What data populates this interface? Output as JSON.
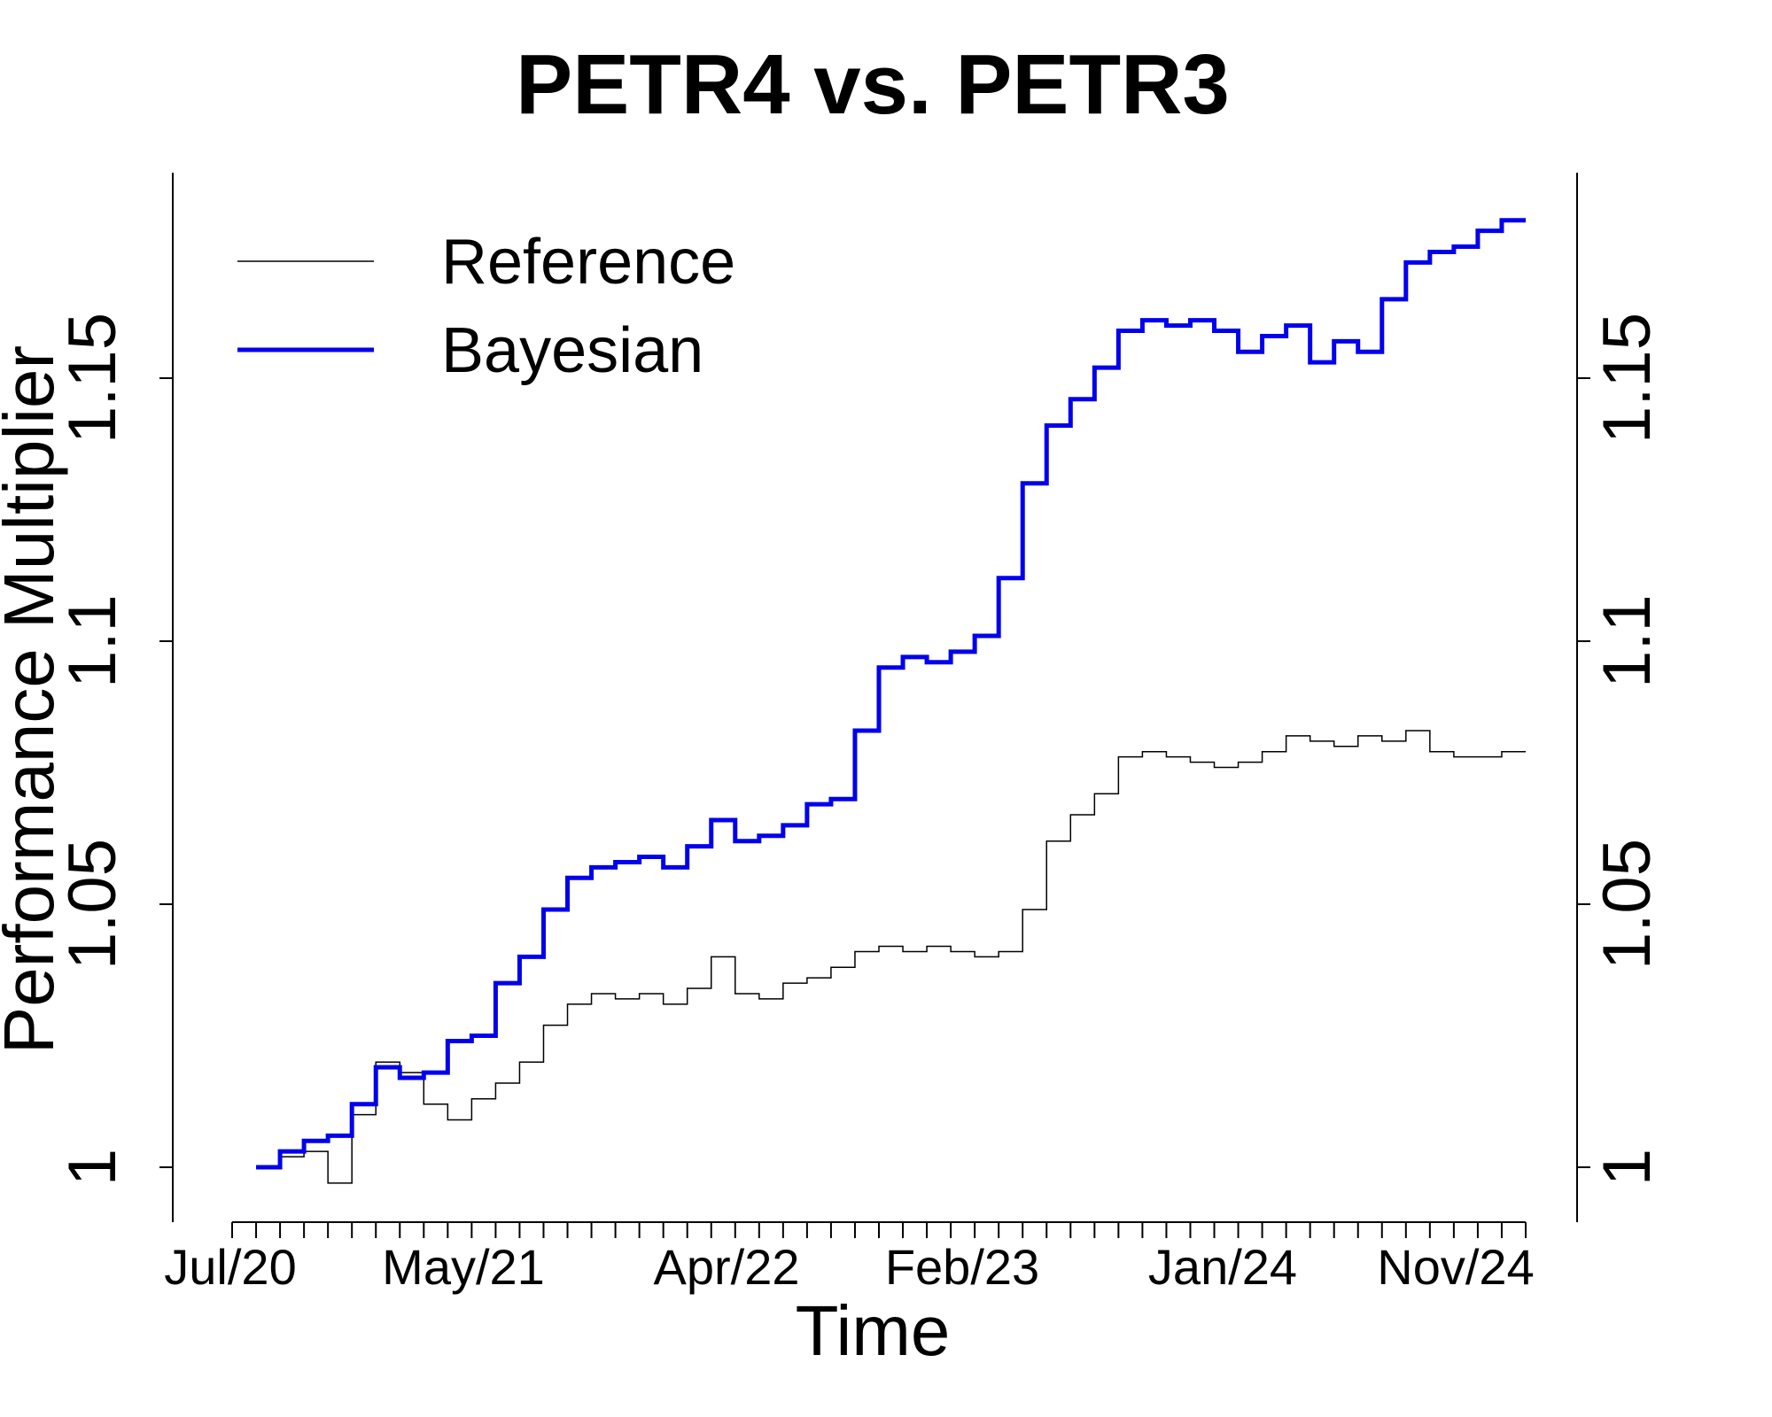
{
  "chart_data": {
    "type": "line",
    "title": "PETR4 vs. PETR3",
    "xlabel": "Time",
    "ylabel": "Performance Multiplier",
    "x_tick_labels": [
      "Jul/20",
      "May/21",
      "Apr/22",
      "Feb/23",
      "Jan/24",
      "Nov/24"
    ],
    "y_ticks": [
      1,
      1.05,
      1.1,
      1.15
    ],
    "y_tick_labels": [
      "1",
      "1.05",
      "1.1",
      "1.15"
    ],
    "ylim": [
      0.989,
      1.188
    ],
    "xlim": [
      "2020-06",
      "2024-12"
    ],
    "grid": false,
    "legend_position": "top-left",
    "series": [
      {
        "name": "Reference",
        "color": "#000000",
        "points": [
          [
            "2020-07",
            1.0
          ],
          [
            "2020-08",
            1.002
          ],
          [
            "2020-09",
            1.003
          ],
          [
            "2020-10",
            0.997
          ],
          [
            "2020-11",
            1.01
          ],
          [
            "2020-12",
            1.02
          ],
          [
            "2021-01",
            1.018
          ],
          [
            "2021-02",
            1.012
          ],
          [
            "2021-03",
            1.009
          ],
          [
            "2021-04",
            1.013
          ],
          [
            "2021-05",
            1.016
          ],
          [
            "2021-06",
            1.02
          ],
          [
            "2021-07",
            1.027
          ],
          [
            "2021-08",
            1.031
          ],
          [
            "2021-09",
            1.033
          ],
          [
            "2021-10",
            1.032
          ],
          [
            "2021-11",
            1.033
          ],
          [
            "2021-12",
            1.031
          ],
          [
            "2022-01",
            1.034
          ],
          [
            "2022-02",
            1.04
          ],
          [
            "2022-03",
            1.033
          ],
          [
            "2022-04",
            1.032
          ],
          [
            "2022-05",
            1.035
          ],
          [
            "2022-06",
            1.036
          ],
          [
            "2022-07",
            1.038
          ],
          [
            "2022-08",
            1.041
          ],
          [
            "2022-09",
            1.042
          ],
          [
            "2022-10",
            1.041
          ],
          [
            "2022-11",
            1.042
          ],
          [
            "2022-12",
            1.041
          ],
          [
            "2023-01",
            1.04
          ],
          [
            "2023-02",
            1.041
          ],
          [
            "2023-03",
            1.049
          ],
          [
            "2023-04",
            1.062
          ],
          [
            "2023-05",
            1.067
          ],
          [
            "2023-06",
            1.071
          ],
          [
            "2023-07",
            1.078
          ],
          [
            "2023-08",
            1.079
          ],
          [
            "2023-09",
            1.078
          ],
          [
            "2023-10",
            1.077
          ],
          [
            "2023-11",
            1.076
          ],
          [
            "2023-12",
            1.077
          ],
          [
            "2024-01",
            1.079
          ],
          [
            "2024-02",
            1.082
          ],
          [
            "2024-03",
            1.081
          ],
          [
            "2024-04",
            1.08
          ],
          [
            "2024-05",
            1.082
          ],
          [
            "2024-06",
            1.081
          ],
          [
            "2024-07",
            1.083
          ],
          [
            "2024-08",
            1.079
          ],
          [
            "2024-09",
            1.078
          ],
          [
            "2024-10",
            1.078
          ],
          [
            "2024-11",
            1.079
          ],
          [
            "2024-12",
            1.079
          ]
        ]
      },
      {
        "name": "Bayesian",
        "color": "#0000ee",
        "points": [
          [
            "2020-07",
            1.0
          ],
          [
            "2020-08",
            1.003
          ],
          [
            "2020-09",
            1.005
          ],
          [
            "2020-10",
            1.006
          ],
          [
            "2020-11",
            1.012
          ],
          [
            "2020-12",
            1.019
          ],
          [
            "2021-01",
            1.017
          ],
          [
            "2021-02",
            1.018
          ],
          [
            "2021-03",
            1.024
          ],
          [
            "2021-04",
            1.025
          ],
          [
            "2021-05",
            1.035
          ],
          [
            "2021-06",
            1.04
          ],
          [
            "2021-07",
            1.049
          ],
          [
            "2021-08",
            1.055
          ],
          [
            "2021-09",
            1.057
          ],
          [
            "2021-10",
            1.058
          ],
          [
            "2021-11",
            1.059
          ],
          [
            "2021-12",
            1.057
          ],
          [
            "2022-01",
            1.061
          ],
          [
            "2022-02",
            1.066
          ],
          [
            "2022-03",
            1.062
          ],
          [
            "2022-04",
            1.063
          ],
          [
            "2022-05",
            1.065
          ],
          [
            "2022-06",
            1.069
          ],
          [
            "2022-07",
            1.07
          ],
          [
            "2022-08",
            1.083
          ],
          [
            "2022-09",
            1.095
          ],
          [
            "2022-10",
            1.097
          ],
          [
            "2022-11",
            1.096
          ],
          [
            "2022-12",
            1.098
          ],
          [
            "2023-01",
            1.101
          ],
          [
            "2023-02",
            1.112
          ],
          [
            "2023-03",
            1.13
          ],
          [
            "2023-04",
            1.141
          ],
          [
            "2023-05",
            1.146
          ],
          [
            "2023-06",
            1.152
          ],
          [
            "2023-07",
            1.159
          ],
          [
            "2023-08",
            1.161
          ],
          [
            "2023-09",
            1.16
          ],
          [
            "2023-10",
            1.161
          ],
          [
            "2023-11",
            1.159
          ],
          [
            "2023-12",
            1.155
          ],
          [
            "2024-01",
            1.158
          ],
          [
            "2024-02",
            1.16
          ],
          [
            "2024-03",
            1.153
          ],
          [
            "2024-04",
            1.157
          ],
          [
            "2024-05",
            1.155
          ],
          [
            "2024-06",
            1.165
          ],
          [
            "2024-07",
            1.172
          ],
          [
            "2024-08",
            1.174
          ],
          [
            "2024-09",
            1.175
          ],
          [
            "2024-10",
            1.178
          ],
          [
            "2024-11",
            1.18
          ],
          [
            "2024-12",
            1.18
          ]
        ]
      }
    ]
  }
}
